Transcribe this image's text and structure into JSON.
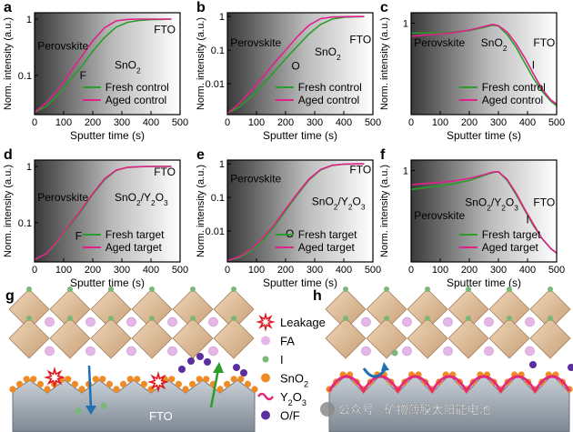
{
  "chart_data": [
    {
      "panel": "a",
      "type": "line",
      "yscale": "log",
      "xlabel": "Sputter time (s)",
      "ylabel": "Norm. intensity (a.u.)",
      "xlim": [
        0,
        500
      ],
      "ylim": [
        0.02,
        1.3
      ],
      "xticks": [
        "0",
        "100",
        "200",
        "300",
        "400",
        "500"
      ],
      "yticks": [
        {
          "label": "1",
          "value": 1
        },
        {
          "label": "0.1",
          "value": 0.1
        }
      ],
      "regions": [
        "Perovskite",
        "SnO2",
        "FTO"
      ],
      "element": "F",
      "series": [
        {
          "name": "Fresh control",
          "color": "#2a9d2a",
          "x": [
            0,
            40,
            80,
            120,
            160,
            200,
            240,
            280,
            320,
            360,
            400,
            440,
            470
          ],
          "y": [
            0.022,
            0.028,
            0.045,
            0.08,
            0.14,
            0.27,
            0.47,
            0.72,
            0.88,
            0.95,
            0.98,
            0.99,
            1.0
          ]
        },
        {
          "name": "Aged control",
          "color": "#e0218a",
          "x": [
            0,
            40,
            80,
            120,
            160,
            200,
            240,
            280,
            320,
            360,
            400,
            440,
            470
          ],
          "y": [
            0.022,
            0.032,
            0.055,
            0.11,
            0.21,
            0.41,
            0.7,
            0.93,
            0.99,
            1.0,
            1.0,
            1.0,
            1.0
          ]
        }
      ]
    },
    {
      "panel": "b",
      "type": "line",
      "yscale": "log",
      "xlabel": "Sputter time (s)",
      "ylabel": "Norm. intensity (a.u.)",
      "xlim": [
        0,
        500
      ],
      "ylim": [
        0.0012,
        1.3
      ],
      "xticks": [
        "0",
        "100",
        "200",
        "300",
        "400",
        "500"
      ],
      "yticks": [
        {
          "label": "1",
          "value": 1
        },
        {
          "label": "0.1",
          "value": 0.1
        },
        {
          "label": "0.01",
          "value": 0.01
        }
      ],
      "regions": [
        "Perovskite",
        "SnO2",
        "FTO"
      ],
      "element": "O",
      "series": [
        {
          "name": "Fresh control",
          "color": "#2a9d2a",
          "x": [
            0,
            40,
            80,
            120,
            160,
            200,
            240,
            280,
            320,
            360,
            400,
            440,
            470
          ],
          "y": [
            0.0013,
            0.002,
            0.004,
            0.009,
            0.022,
            0.055,
            0.13,
            0.3,
            0.58,
            0.84,
            0.96,
            0.99,
            1.0
          ]
        },
        {
          "name": "Aged control",
          "color": "#e0218a",
          "x": [
            0,
            40,
            80,
            120,
            160,
            200,
            240,
            280,
            320,
            360,
            400,
            440,
            470
          ],
          "y": [
            0.0013,
            0.0025,
            0.006,
            0.015,
            0.04,
            0.1,
            0.25,
            0.55,
            0.86,
            0.97,
            0.99,
            1.0,
            1.0
          ]
        }
      ]
    },
    {
      "panel": "c",
      "type": "line",
      "yscale": "log",
      "xlabel": "Sputter time (s)",
      "ylabel": "Norm. intensity (a.u.)",
      "xlim": [
        0,
        500
      ],
      "ylim": [
        0.1,
        1.3
      ],
      "xticks": [
        "0",
        "100",
        "200",
        "300",
        "400",
        "500"
      ],
      "yticks": [
        {
          "label": "1",
          "value": 1
        }
      ],
      "regions": [
        "Perovskite",
        "SnO2",
        "FTO"
      ],
      "element": "I",
      "series": [
        {
          "name": "Fresh control",
          "color": "#2a9d2a",
          "x": [
            0,
            50,
            100,
            150,
            200,
            250,
            280,
            300,
            330,
            360,
            390,
            420,
            450,
            480,
            500
          ],
          "y": [
            0.78,
            0.78,
            0.78,
            0.8,
            0.83,
            0.9,
            0.95,
            0.93,
            0.75,
            0.55,
            0.37,
            0.25,
            0.18,
            0.14,
            0.125
          ]
        },
        {
          "name": "Aged control",
          "color": "#e0218a",
          "x": [
            0,
            50,
            100,
            150,
            200,
            250,
            280,
            300,
            330,
            360,
            390,
            420,
            450,
            480,
            500
          ],
          "y": [
            0.72,
            0.74,
            0.76,
            0.79,
            0.84,
            0.92,
            0.97,
            0.94,
            0.8,
            0.6,
            0.42,
            0.28,
            0.19,
            0.145,
            0.13
          ]
        }
      ]
    },
    {
      "panel": "d",
      "type": "line",
      "yscale": "log",
      "xlabel": "Sputter time (s)",
      "ylabel": "Norm. intensity (a.u.)",
      "xlim": [
        0,
        500
      ],
      "ylim": [
        0.02,
        1.3
      ],
      "xticks": [
        "0",
        "100",
        "200",
        "300",
        "400",
        "500"
      ],
      "yticks": [
        {
          "label": "1",
          "value": 1
        },
        {
          "label": "0.1",
          "value": 0.1
        }
      ],
      "regions": [
        "Perovskite",
        "SnO2/Y2O3",
        "FTO"
      ],
      "element": "F",
      "series": [
        {
          "name": "Fresh target",
          "color": "#2a9d2a",
          "x": [
            0,
            40,
            80,
            120,
            160,
            200,
            240,
            280,
            320,
            360,
            400,
            440,
            470
          ],
          "y": [
            0.022,
            0.028,
            0.045,
            0.085,
            0.16,
            0.32,
            0.58,
            0.85,
            0.97,
            0.99,
            1.0,
            1.0,
            1.0
          ]
        },
        {
          "name": "Aged target",
          "color": "#e0218a",
          "x": [
            0,
            40,
            80,
            120,
            160,
            200,
            240,
            280,
            320,
            360,
            400,
            440,
            470
          ],
          "y": [
            0.022,
            0.028,
            0.048,
            0.09,
            0.17,
            0.33,
            0.6,
            0.86,
            0.97,
            0.99,
            1.0,
            1.0,
            1.0
          ]
        }
      ]
    },
    {
      "panel": "e",
      "type": "line",
      "yscale": "log",
      "xlabel": "Sputter time (s)",
      "ylabel": "Norm. intensity (a.u.)",
      "xlim": [
        0,
        500
      ],
      "ylim": [
        0.0012,
        1.3
      ],
      "xticks": [
        "0",
        "100",
        "200",
        "300",
        "400",
        "500"
      ],
      "yticks": [
        {
          "label": "1",
          "value": 1
        },
        {
          "label": "0.1",
          "value": 0.1
        },
        {
          "label": "0.01",
          "value": 0.01
        }
      ],
      "regions": [
        "Perovskite",
        "SnO2/Y2O3",
        "FTO"
      ],
      "element": "O",
      "series": [
        {
          "name": "Fresh target",
          "color": "#2a9d2a",
          "x": [
            0,
            40,
            80,
            120,
            160,
            200,
            240,
            280,
            320,
            360,
            400,
            440,
            470
          ],
          "y": [
            0.0013,
            0.0016,
            0.0025,
            0.005,
            0.013,
            0.04,
            0.12,
            0.33,
            0.66,
            0.9,
            0.98,
            1.0,
            1.0
          ]
        },
        {
          "name": "Aged target",
          "color": "#e0218a",
          "x": [
            0,
            40,
            80,
            120,
            160,
            200,
            240,
            280,
            320,
            360,
            400,
            440,
            470
          ],
          "y": [
            0.0013,
            0.0017,
            0.0028,
            0.006,
            0.015,
            0.045,
            0.13,
            0.35,
            0.68,
            0.91,
            0.98,
            1.0,
            1.0
          ]
        }
      ]
    },
    {
      "panel": "f",
      "type": "line",
      "yscale": "log",
      "xlabel": "Sputter time (s)",
      "ylabel": "Norm. intensity (a.u.)",
      "xlim": [
        0,
        500
      ],
      "ylim": [
        0.1,
        1.3
      ],
      "xticks": [
        "0",
        "100",
        "200",
        "300",
        "400",
        "500"
      ],
      "yticks": [
        {
          "label": "1",
          "value": 1
        }
      ],
      "regions": [
        "Perovskite",
        "SnO2/Y2O3",
        "FTO"
      ],
      "element": "I",
      "series": [
        {
          "name": "Fresh target",
          "color": "#2a9d2a",
          "x": [
            0,
            50,
            100,
            150,
            200,
            250,
            280,
            300,
            330,
            360,
            390,
            420,
            450,
            480,
            500
          ],
          "y": [
            0.62,
            0.65,
            0.68,
            0.72,
            0.78,
            0.88,
            0.95,
            0.97,
            0.78,
            0.55,
            0.37,
            0.25,
            0.18,
            0.14,
            0.125
          ]
        },
        {
          "name": "Aged target",
          "color": "#e0218a",
          "x": [
            0,
            50,
            100,
            150,
            200,
            250,
            280,
            300,
            330,
            360,
            390,
            420,
            450,
            480,
            500
          ],
          "y": [
            0.7,
            0.72,
            0.74,
            0.77,
            0.82,
            0.9,
            0.96,
            0.97,
            0.8,
            0.57,
            0.38,
            0.26,
            0.18,
            0.14,
            0.125
          ]
        }
      ]
    }
  ],
  "schematic": {
    "panel_g_label": "g",
    "panel_h_label": "h",
    "substrate_label": "FTO",
    "legend": [
      {
        "key": "leakage",
        "label": "Leakage"
      },
      {
        "key": "fa",
        "label": "FA",
        "color": "#e5b7e8"
      },
      {
        "key": "iodide",
        "label": "I",
        "color": "#7ab87a"
      },
      {
        "key": "sno2",
        "label": "SnO2",
        "color": "#f08a24"
      },
      {
        "key": "y2o3",
        "label": "Y2O3",
        "color": "#e6297b"
      },
      {
        "key": "of",
        "label": "O/F",
        "color": "#5b2fa0"
      }
    ],
    "watermark": "公众号 · 矿物薄膜太阳能电池"
  },
  "colors": {
    "fresh": "#2a9d2a",
    "aged": "#e0218a",
    "octahedron": "#d9b48f",
    "substrate": "#9aa3ad"
  }
}
